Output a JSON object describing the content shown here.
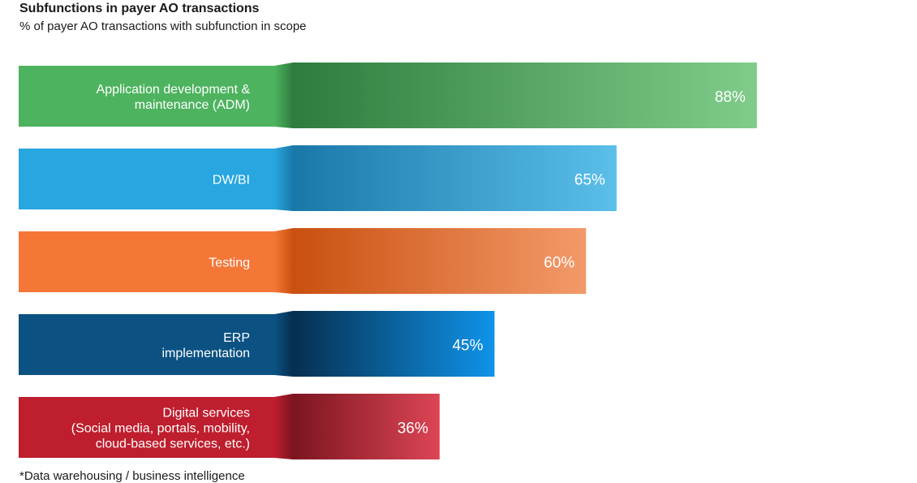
{
  "title": "Subfunctions in payer AO transactions",
  "subtitle": "% of payer AO transactions with subfunction in scope",
  "footnote": "*Data warehousing / business intelligence",
  "chart_data": {
    "type": "bar",
    "orientation": "horizontal",
    "title": "Subfunctions in payer AO transactions",
    "subtitle": "% of payer AO transactions with subfunction in scope",
    "categories": [
      [
        "Application development &",
        "maintenance (ADM)"
      ],
      [
        "DW/BI"
      ],
      [
        "Testing"
      ],
      [
        "ERP",
        "implementation"
      ],
      [
        "Digital services",
        "(Social media, portals, mobility,",
        "cloud-based services, etc.)"
      ]
    ],
    "values": [
      88,
      65,
      60,
      45,
      36
    ],
    "value_labels": [
      "88%",
      "65%",
      "60%",
      "45%",
      "36%"
    ],
    "unit": "%",
    "xlim": [
      0,
      100
    ],
    "grid": false,
    "legend": "none",
    "colors": [
      {
        "label": "#4db35f",
        "dark": "#2e7d3e",
        "light": "#80cc8a"
      },
      {
        "label": "#27a6e0",
        "dark": "#1a78a9",
        "light": "#5bbfea"
      },
      {
        "label": "#f47738",
        "dark": "#c9500f",
        "light": "#f39a6a"
      },
      {
        "label": "#0b5283",
        "dark": "#062f4f",
        "light": "#0f93e9"
      },
      {
        "label": "#be1e2d",
        "dark": "#7c1520",
        "light": "#dc4555"
      }
    ]
  }
}
